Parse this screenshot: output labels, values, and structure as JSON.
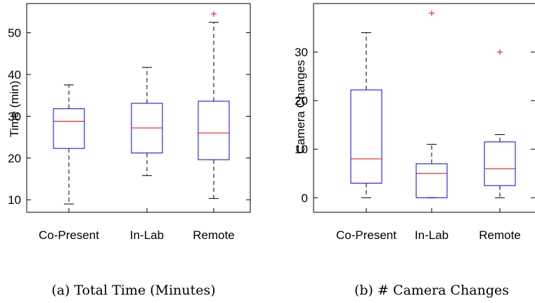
{
  "chart_data": [
    {
      "type": "box",
      "categories": [
        "Co-Present",
        "In-Lab",
        "Remote"
      ],
      "ylabel": "Time (min)",
      "ylim": [
        7,
        57
      ],
      "yticks": [
        10,
        20,
        30,
        40,
        50
      ],
      "series": [
        {
          "category": "Co-Present",
          "whisker_low": 9,
          "q1": 22.3,
          "median": 28.8,
          "q3": 31.8,
          "whisker_high": 37.5,
          "outliers": []
        },
        {
          "category": "In-Lab",
          "whisker_low": 15.8,
          "q1": 21.2,
          "median": 27.2,
          "q3": 33.1,
          "whisker_high": 41.7,
          "outliers": []
        },
        {
          "category": "Remote",
          "whisker_low": 10.3,
          "q1": 19.6,
          "median": 26,
          "q3": 33.6,
          "whisker_high": 52.5,
          "outliers": [
            54.5
          ]
        }
      ],
      "caption": "(a) Total Time (Minutes)"
    },
    {
      "type": "box",
      "categories": [
        "Co-Present",
        "In-Lab",
        "Remote"
      ],
      "ylabel": "Camera Changes",
      "ylim": [
        -3,
        40
      ],
      "yticks": [
        0,
        10,
        20,
        30
      ],
      "series": [
        {
          "category": "Co-Present",
          "whisker_low": 0,
          "q1": 3,
          "median": 8,
          "q3": 22.2,
          "whisker_high": 34,
          "outliers": []
        },
        {
          "category": "In-Lab",
          "whisker_low": 0,
          "q1": 0,
          "median": 5,
          "q3": 7,
          "whisker_high": 11,
          "outliers": [
            38
          ]
        },
        {
          "category": "Remote",
          "whisker_low": 0,
          "q1": 2.5,
          "median": 6,
          "q3": 11.5,
          "whisker_high": 13,
          "outliers": [
            30
          ]
        }
      ],
      "caption": "(b) # Camera Changes"
    }
  ],
  "colors": {
    "box": "#0000ff",
    "median": "#ff0000",
    "outlier": "#ff0000",
    "whisker": "#000000"
  }
}
